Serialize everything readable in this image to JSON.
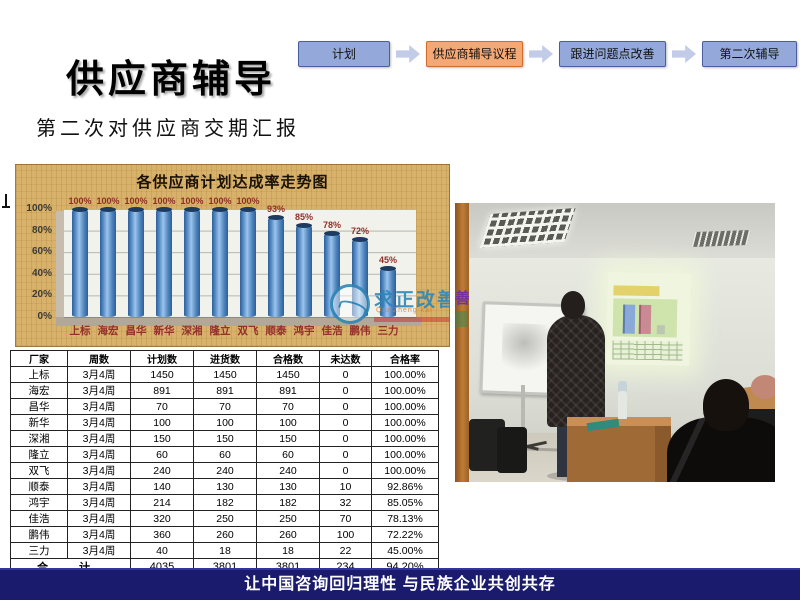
{
  "slide": {
    "title": "供应商辅导",
    "subtitle": "第二次对供应商交期汇报",
    "footer": "让中国咨询回归理性  与民族企业共创共存"
  },
  "flow": {
    "steps": [
      {
        "label": "计划",
        "highlight": false
      },
      {
        "label": "供应商辅导议程",
        "highlight": true
      },
      {
        "label": "跟进问题点改善",
        "highlight": false
      },
      {
        "label": "第二次辅导",
        "highlight": false
      }
    ],
    "highlight_color": "#f3a876",
    "normal_color": "#94a8da"
  },
  "chart_data": {
    "type": "bar",
    "title": "各供应商计划达成率走势图",
    "categories": [
      "上标",
      "海宏",
      "昌华",
      "新华",
      "深湘",
      "隆立",
      "双飞",
      "顺泰",
      "鸿宇",
      "佳浩",
      "鹏伟",
      "三力"
    ],
    "values": [
      100,
      100,
      100,
      100,
      100,
      100,
      100,
      93,
      85,
      78,
      72,
      45
    ],
    "value_labels": [
      "100%",
      "100%",
      "100%",
      "100%",
      "100%",
      "100%",
      "100%",
      "93%",
      "85%",
      "78%",
      "72%",
      "45%"
    ],
    "y_ticks": [
      "100%",
      "80%",
      "60%",
      "40%",
      "20%",
      "0%"
    ],
    "xlabel": "",
    "ylabel": "",
    "ylim": [
      0,
      100
    ],
    "grid": true,
    "legend": "none",
    "bar_color": "#4f86c0",
    "label_color": "#8e2f26",
    "background_color": "#d8b16a"
  },
  "watermark": {
    "text": "求正改善",
    "subtext": "Qiu Zheng kai",
    "color": "#2c85b5"
  },
  "table": {
    "headers": [
      "厂家",
      "周数",
      "计划数",
      "进货数",
      "合格数",
      "未达数",
      "合格率"
    ],
    "rows": [
      [
        "上标",
        "3月4周",
        "1450",
        "1450",
        "1450",
        "0",
        "100.00%"
      ],
      [
        "海宏",
        "3月4周",
        "891",
        "891",
        "891",
        "0",
        "100.00%"
      ],
      [
        "昌华",
        "3月4周",
        "70",
        "70",
        "70",
        "0",
        "100.00%"
      ],
      [
        "新华",
        "3月4周",
        "100",
        "100",
        "100",
        "0",
        "100.00%"
      ],
      [
        "深湘",
        "3月4周",
        "150",
        "150",
        "150",
        "0",
        "100.00%"
      ],
      [
        "隆立",
        "3月4周",
        "60",
        "60",
        "60",
        "0",
        "100.00%"
      ],
      [
        "双飞",
        "3月4周",
        "240",
        "240",
        "240",
        "0",
        "100.00%"
      ],
      [
        "顺泰",
        "3月4周",
        "140",
        "130",
        "130",
        "10",
        "92.86%"
      ],
      [
        "鸿宇",
        "3月4周",
        "214",
        "182",
        "182",
        "32",
        "85.05%"
      ],
      [
        "佳浩",
        "3月4周",
        "320",
        "250",
        "250",
        "70",
        "78.13%"
      ],
      [
        "鹏伟",
        "3月4周",
        "360",
        "260",
        "260",
        "100",
        "72.22%"
      ],
      [
        "三力",
        "3月4周",
        "40",
        "18",
        "18",
        "22",
        "45.00%"
      ]
    ],
    "total_label": "合 计",
    "total": [
      "4035",
      "3801",
      "3801",
      "234",
      "94.20%"
    ]
  },
  "photo": {
    "pillar_text": "善"
  }
}
